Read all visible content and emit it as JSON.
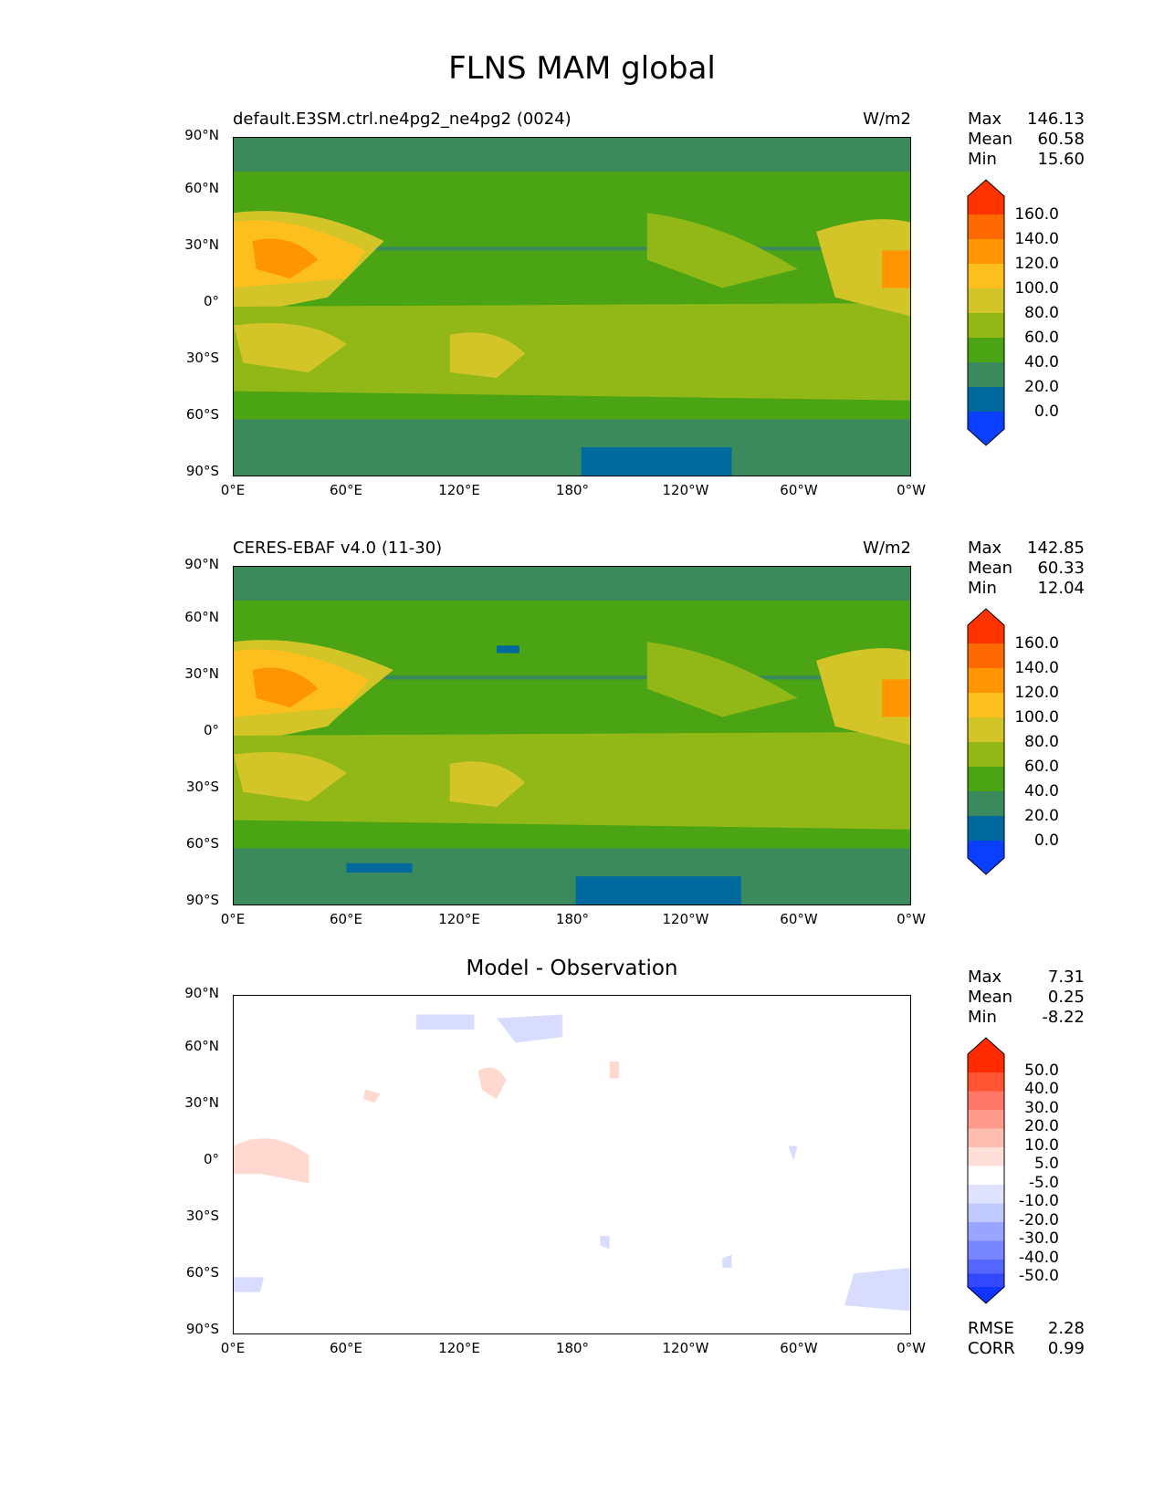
{
  "figure_title": "FLNS MAM global",
  "lat_labels": [
    "90°N",
    "60°N",
    "30°N",
    "0°",
    "30°S",
    "60°S",
    "90°S"
  ],
  "lon_labels": [
    "0°E",
    "60°E",
    "120°E",
    "180°",
    "120°W",
    "60°W",
    "0°W"
  ],
  "panels": [
    {
      "left_title": "default.E3SM.ctrl.ne4pg2_ne4pg2 (0024)",
      "right_title": "W/m2",
      "center_title": "",
      "stats": [
        {
          "k": "Max",
          "v": "146.13"
        },
        {
          "k": "Mean",
          "v": "60.58"
        },
        {
          "k": "Min",
          "v": "15.60"
        }
      ],
      "colorbar_labels": [
        "160.0",
        "140.0",
        "120.0",
        "100.0",
        "80.0",
        "60.0",
        "40.0",
        "20.0",
        "0.0"
      ],
      "colorbar_colors": [
        "#ff3300",
        "#ff6a00",
        "#ff9500",
        "#fdbf1e",
        "#d3c527",
        "#92b817",
        "#4aa414",
        "#3a8a5e",
        "#00699e",
        "#0a3fff"
      ]
    },
    {
      "left_title": "CERES-EBAF v4.0 (11-30)",
      "right_title": "W/m2",
      "center_title": "",
      "stats": [
        {
          "k": "Max",
          "v": "142.85"
        },
        {
          "k": "Mean",
          "v": "60.33"
        },
        {
          "k": "Min",
          "v": "12.04"
        }
      ],
      "colorbar_labels": [
        "160.0",
        "140.0",
        "120.0",
        "100.0",
        "80.0",
        "60.0",
        "40.0",
        "20.0",
        "0.0"
      ],
      "colorbar_colors": [
        "#ff3300",
        "#ff6a00",
        "#ff9500",
        "#fdbf1e",
        "#d3c527",
        "#92b817",
        "#4aa414",
        "#3a8a5e",
        "#00699e",
        "#0a3fff"
      ]
    },
    {
      "left_title": "",
      "right_title": "",
      "center_title": "Model - Observation",
      "stats": [
        {
          "k": "Max",
          "v": "7.31"
        },
        {
          "k": "Mean",
          "v": "0.25"
        },
        {
          "k": "Min",
          "v": "-8.22"
        }
      ],
      "colorbar_labels": [
        "50.0",
        "40.0",
        "30.0",
        "20.0",
        "10.0",
        "5.0",
        "-5.0",
        "-10.0",
        "-20.0",
        "-30.0",
        "-40.0",
        "-50.0"
      ],
      "colorbar_colors": [
        "#ff2a00",
        "#ff5533",
        "#ff7766",
        "#ff9a8c",
        "#ffbcb0",
        "#ffe0d9",
        "#ffffff",
        "#dfe3ff",
        "#bfc8ff",
        "#99a6ff",
        "#7785ff",
        "#5566ff",
        "#3348ff",
        "#1133ff"
      ],
      "bottom_stats": [
        {
          "k": "RMSE",
          "v": "2.28"
        },
        {
          "k": "CORR",
          "v": "0.99"
        }
      ]
    }
  ],
  "map_colors": {
    "c0": "#3a8a5e",
    "c1": "#4aa414",
    "c2": "#92b817",
    "c3": "#d3c527",
    "c4": "#fdbf1e",
    "c5": "#ff9500",
    "c6": "#00699e",
    "diff_bg": "#ffffff",
    "diff_pos": "#ffd8d0",
    "diff_pos2": "#ffbcb0",
    "diff_neg": "#d8ddff"
  }
}
